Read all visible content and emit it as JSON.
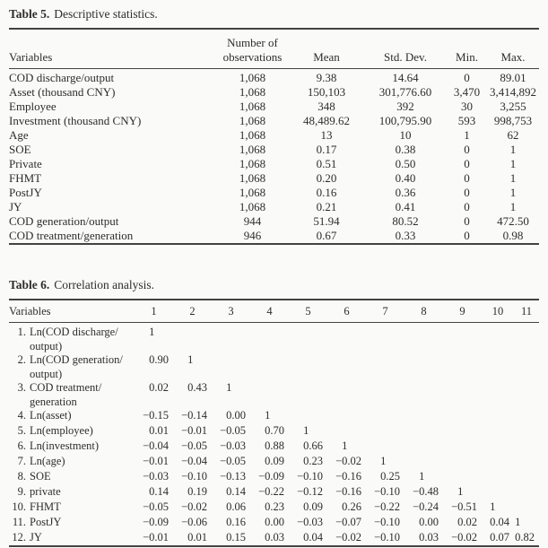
{
  "colors": {
    "background": "#fafaf8",
    "text": "#2e2d2c",
    "rule": "#424240"
  },
  "table5": {
    "caption_label": "Table 5.",
    "caption_text": "Descriptive statistics.",
    "columns": [
      "Variables",
      "Number of\nobservations",
      "Mean",
      "Std. Dev.",
      "Min.",
      "Max."
    ],
    "rows": [
      [
        "COD discharge/output",
        "1,068",
        "9.38",
        "14.64",
        "0",
        "89.01"
      ],
      [
        "Asset (thousand CNY)",
        "1,068",
        "150,103",
        "301,776.60",
        "3,470",
        "3,414,892"
      ],
      [
        "Employee",
        "1,068",
        "348",
        "392",
        "30",
        "3,255"
      ],
      [
        "Investment (thousand CNY)",
        "1,068",
        "48,489.62",
        "100,795.90",
        "593",
        "998,753"
      ],
      [
        "Age",
        "1,068",
        "13",
        "10",
        "1",
        "62"
      ],
      [
        "SOE",
        "1,068",
        "0.17",
        "0.38",
        "0",
        "1"
      ],
      [
        "Private",
        "1,068",
        "0.51",
        "0.50",
        "0",
        "1"
      ],
      [
        "FHMT",
        "1,068",
        "0.20",
        "0.40",
        "0",
        "1"
      ],
      [
        "PostJY",
        "1,068",
        "0.16",
        "0.36",
        "0",
        "1"
      ],
      [
        "JY",
        "1,068",
        "0.21",
        "0.41",
        "0",
        "1"
      ],
      [
        "COD generation/output",
        "944",
        "51.94",
        "80.52",
        "0",
        "472.50"
      ],
      [
        "COD treatment/generation",
        "946",
        "0.67",
        "0.33",
        "0",
        "0.98"
      ]
    ]
  },
  "table6": {
    "caption_label": "Table 6.",
    "caption_text": "Correlation analysis.",
    "variables_header": "Variables",
    "column_numbers": [
      "1",
      "2",
      "3",
      "4",
      "5",
      "6",
      "7",
      "8",
      "9",
      "10",
      "11"
    ],
    "rows": [
      {
        "num": "1.",
        "label": "Ln(COD discharge/\noutput)",
        "values": [
          "1"
        ]
      },
      {
        "num": "2.",
        "label": "Ln(COD generation/\noutput)",
        "values": [
          "0.90",
          "1"
        ]
      },
      {
        "num": "3.",
        "label": "COD treatment/\ngeneration",
        "values": [
          "0.02",
          "0.43",
          "1"
        ]
      },
      {
        "num": "4.",
        "label": "Ln(asset)",
        "values": [
          "−0.15",
          "−0.14",
          "0.00",
          "1"
        ]
      },
      {
        "num": "5.",
        "label": "Ln(employee)",
        "values": [
          "0.01",
          "−0.01",
          "−0.05",
          "0.70",
          "1"
        ]
      },
      {
        "num": "6.",
        "label": "Ln(investment)",
        "values": [
          "−0.04",
          "−0.05",
          "−0.03",
          "0.88",
          "0.66",
          "1"
        ]
      },
      {
        "num": "7.",
        "label": "Ln(age)",
        "values": [
          "−0.01",
          "−0.04",
          "−0.05",
          "0.09",
          "0.23",
          "−0.02",
          "1"
        ]
      },
      {
        "num": "8.",
        "label": "SOE",
        "values": [
          "−0.03",
          "−0.10",
          "−0.13",
          "−0.09",
          "−0.10",
          "−0.16",
          "0.25",
          "1"
        ]
      },
      {
        "num": "9.",
        "label": "private",
        "values": [
          "0.14",
          "0.19",
          "0.14",
          "−0.22",
          "−0.12",
          "−0.16",
          "−0.10",
          "−0.48",
          "1"
        ]
      },
      {
        "num": "10.",
        "label": "FHMT",
        "values": [
          "−0.05",
          "−0.02",
          "0.06",
          "0.23",
          "0.09",
          "0.26",
          "−0.22",
          "−0.24",
          "−0.51",
          "1"
        ]
      },
      {
        "num": "11.",
        "label": "PostJY",
        "values": [
          "−0.09",
          "−0.06",
          "0.16",
          "0.00",
          "−0.03",
          "−0.07",
          "−0.10",
          "0.00",
          "0.02",
          "0.04",
          "1"
        ]
      },
      {
        "num": "12.",
        "label": "JY",
        "values": [
          "−0.01",
          "0.01",
          "0.15",
          "0.03",
          "0.04",
          "−0.02",
          "−0.10",
          "0.03",
          "−0.02",
          "0.07",
          "0.82"
        ]
      }
    ]
  }
}
